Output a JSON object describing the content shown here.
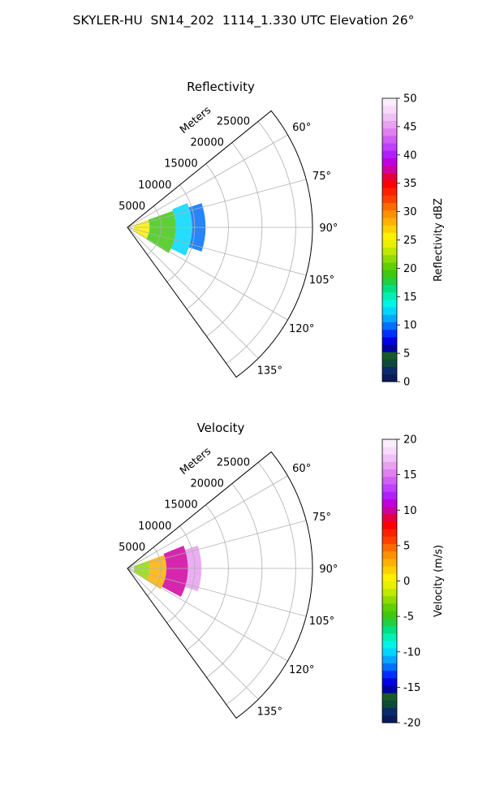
{
  "figure": {
    "suptitle": "SKYLER-HU  SN14_202  1114_1.330 UTC Elevation 26°"
  },
  "chart_data": [
    {
      "type": "heatmap",
      "projection": "polar-sector",
      "title": "Reflectivity",
      "range_label": "Meters",
      "range_ticks": [
        5000,
        10000,
        15000,
        20000,
        25000
      ],
      "range_max": 27500,
      "azimuth_range": [
        51,
        144
      ],
      "azimuth_ticks": [
        "60°",
        "75°",
        "90°",
        "105°",
        "120°",
        "135°"
      ],
      "grid": true,
      "colorbar": {
        "label": "Reflectivity dBZ",
        "min": 0,
        "max": 50,
        "ticks": [
          0,
          5,
          10,
          15,
          20,
          25,
          30,
          35,
          40,
          45,
          50
        ],
        "bands": [
          "#0a1a5a",
          "#0b2a6a",
          "#0c4a3a",
          "#1a5a2a",
          "#0000a0",
          "#0000e6",
          "#0030ff",
          "#0070ff",
          "#00a8ff",
          "#00d6ff",
          "#00f5e6",
          "#00f0b4",
          "#00e080",
          "#20d040",
          "#40c810",
          "#60d000",
          "#90dc00",
          "#c0e800",
          "#e8f000",
          "#fff000",
          "#ffd000",
          "#ffb000",
          "#ff9000",
          "#ff6a00",
          "#ff4000",
          "#ff2000",
          "#ff0000",
          "#e6003c",
          "#d000a0",
          "#c000e0",
          "#b020ff",
          "#c040ff",
          "#d060f0",
          "#e080f0",
          "#e8a0f0",
          "#f0c0f6",
          "#f6dcfa",
          "#fbeefc"
        ]
      },
      "echo_bands": [
        {
          "range": [
            1000,
            3300
          ],
          "azimuth": [
            70,
            122
          ],
          "value": 25
        },
        {
          "range": [
            3300,
            7200
          ],
          "azimuth": [
            70,
            122
          ],
          "value": 19
        },
        {
          "range": [
            7200,
            9600
          ],
          "azimuth": [
            68,
            116
          ],
          "value": 13
        },
        {
          "range": [
            9600,
            11600
          ],
          "azimuth": [
            72,
            108
          ],
          "value": 10
        }
      ]
    },
    {
      "type": "heatmap",
      "projection": "polar-sector",
      "title": "Velocity",
      "range_label": "Meters",
      "range_ticks": [
        5000,
        10000,
        15000,
        20000,
        25000
      ],
      "range_max": 27500,
      "azimuth_range": [
        51,
        144
      ],
      "azimuth_ticks": [
        "60°",
        "75°",
        "90°",
        "105°",
        "120°",
        "135°"
      ],
      "grid": true,
      "colorbar": {
        "label": "Velocity (m/s)",
        "min": -20,
        "max": 20,
        "ticks": [
          -20,
          -15,
          -10,
          -5,
          0,
          5,
          10,
          15,
          20
        ],
        "bands": [
          "#0a1a5a",
          "#0b2a6a",
          "#0c4a3a",
          "#1a5a2a",
          "#0000a0",
          "#0000e6",
          "#0030ff",
          "#0070ff",
          "#00a8ff",
          "#00d6ff",
          "#00f5e6",
          "#00f0b4",
          "#00e080",
          "#20d040",
          "#40c810",
          "#60d000",
          "#90dc00",
          "#c0e800",
          "#e8f000",
          "#fff000",
          "#ffd000",
          "#ffb000",
          "#ff9000",
          "#ff6a00",
          "#ff4000",
          "#ff2000",
          "#ff0000",
          "#e6003c",
          "#d000a0",
          "#c000e0",
          "#b020ff",
          "#c040ff",
          "#d060f0",
          "#e080f0",
          "#e8a0f0",
          "#f0c0f6",
          "#f6dcfa",
          "#fbeefc"
        ]
      },
      "echo_bands": [
        {
          "range": [
            1000,
            3300
          ],
          "azimuth": [
            70,
            122
          ],
          "value": -3
        },
        {
          "range": [
            3300,
            5800
          ],
          "azimuth": [
            70,
            122
          ],
          "value": 3
        },
        {
          "range": [
            5800,
            9000
          ],
          "azimuth": [
            68,
            118
          ],
          "value": 10
        },
        {
          "range": [
            9000,
            11000
          ],
          "azimuth": [
            72,
            108
          ],
          "value": 16
        }
      ]
    }
  ]
}
